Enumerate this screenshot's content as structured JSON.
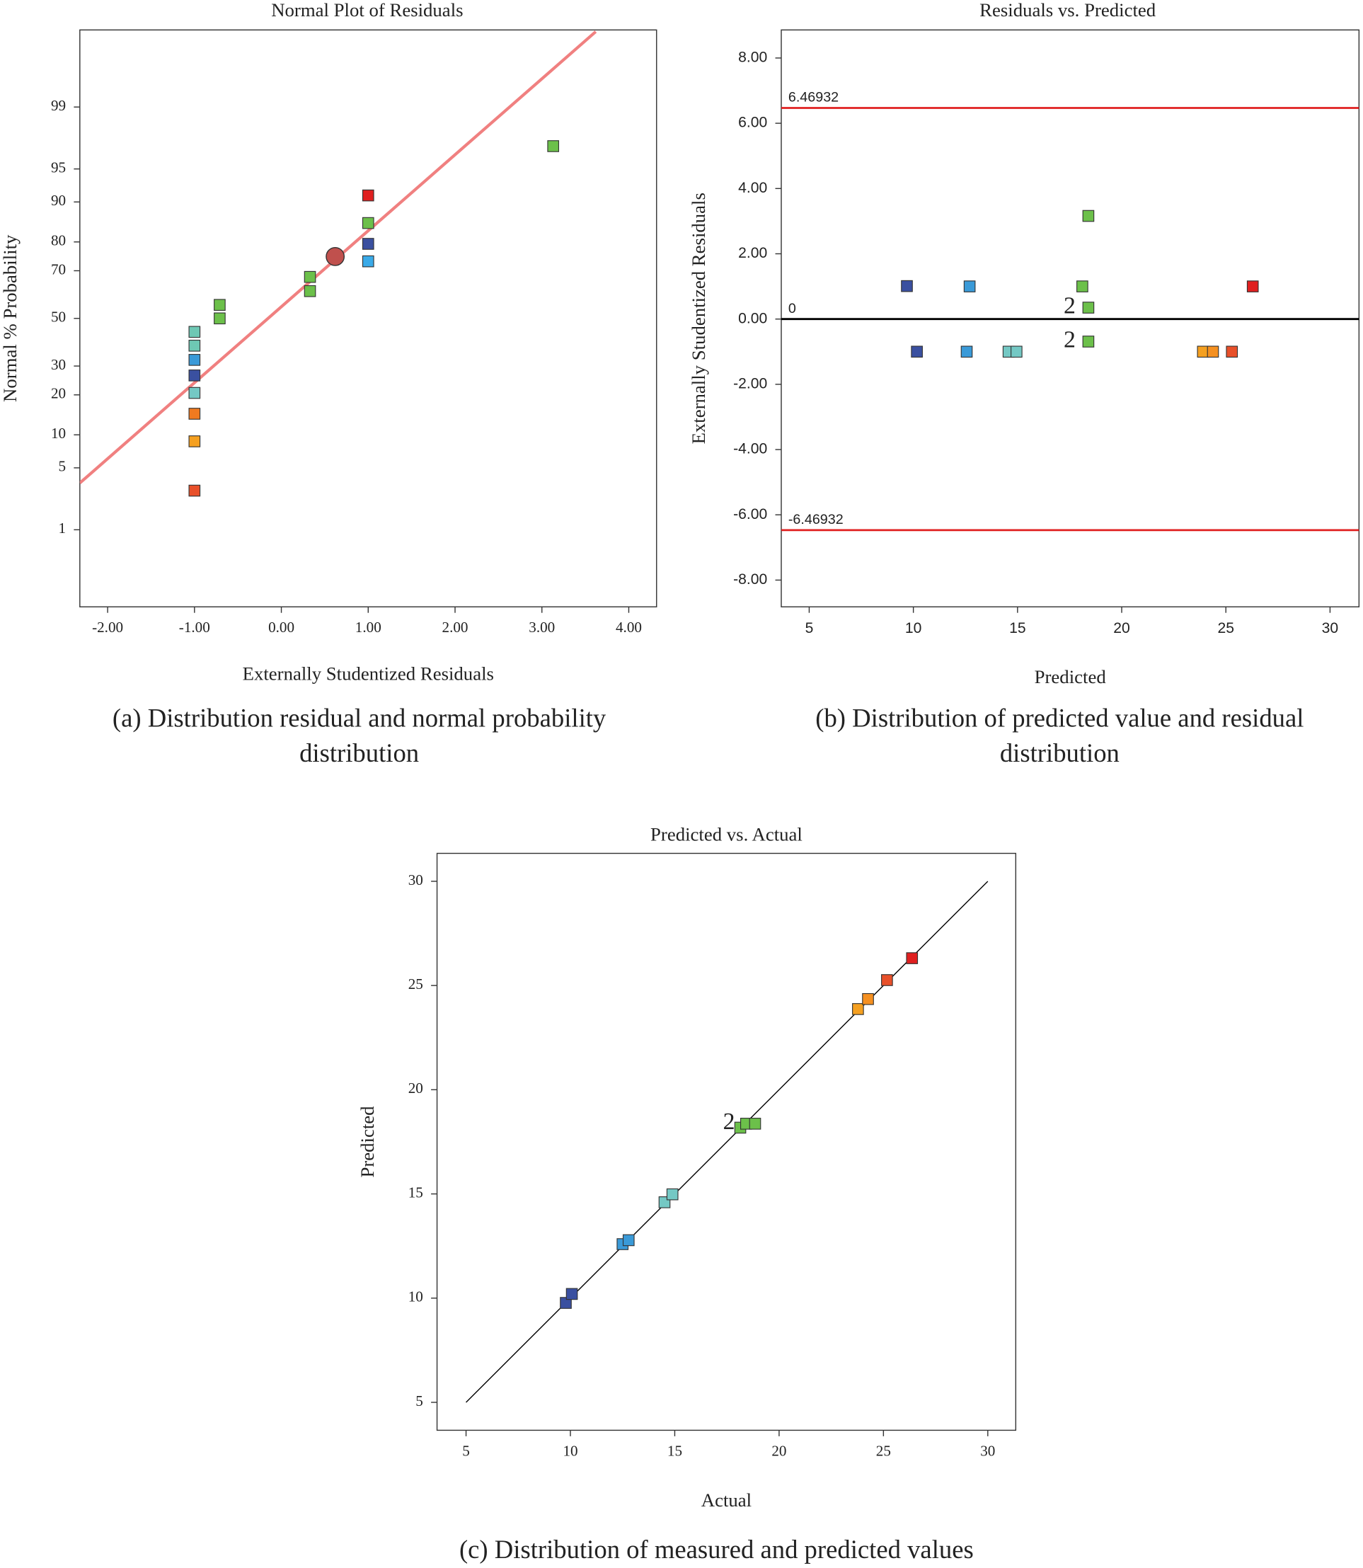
{
  "chart_data": [
    {
      "type": "scatter",
      "title": "Normal Plot of Residuals",
      "x_label": "Externally Studentized Residuals",
      "y_label": "Normal % Probability",
      "caption": "(a) Distribution residual and normal probability distribution",
      "xlim": [
        -2.32,
        4.32
      ],
      "xticks": [
        {
          "value": -2,
          "label": "-2.00"
        },
        {
          "value": -1,
          "label": "-1.00"
        },
        {
          "value": 0,
          "label": "0.00"
        },
        {
          "value": 1,
          "label": "1.00"
        },
        {
          "value": 2,
          "label": "2.00"
        },
        {
          "value": 3,
          "label": "3.00"
        },
        {
          "value": 4,
          "label": "4.00"
        }
      ],
      "yscale": "probit",
      "ylim": [
        0.075,
        99.925
      ],
      "yticks": [
        1,
        5,
        10,
        20,
        30,
        50,
        70,
        80,
        90,
        95,
        99
      ],
      "series": [
        {
          "x": [
            -1,
            -1,
            -1,
            -1,
            -1,
            -1,
            -1,
            -1,
            -0.71,
            -0.71,
            0.33,
            0.33,
            1,
            1,
            1,
            1,
            3.13
          ],
          "values": [
            2.9,
            8.8,
            14.7,
            20.6,
            26.5,
            32.4,
            38.2,
            44.1,
            50,
            55.9,
            61.8,
            67.6,
            73.5,
            79.4,
            85.3,
            91.2,
            97.1
          ],
          "colors": [
            "#e8502a",
            "#f5a020",
            "#f07a20",
            "#74c8c4",
            "#3a50a0",
            "#3a9ad8",
            "#6ec8b4",
            "#6ec8b4",
            "#6cc04a",
            "#6cc04a",
            "#6cc04a",
            "#6cc04a",
            "#3aaae8",
            "#3a50a0",
            "#6cc04a",
            "#e02020",
            "#6cc04a"
          ]
        }
      ],
      "fit_line": {
        "x": [
          -2.32,
          3.62
        ],
        "y": [
          3.5,
          99.92
        ],
        "color": "#f08080"
      },
      "center_point": {
        "x": 0.62,
        "y": 75.2,
        "color": "#c0504d"
      }
    },
    {
      "type": "scatter",
      "title": "Residuals vs. Predicted",
      "x_label": "Predicted",
      "y_label": "Externally Studentized Residuals",
      "caption": "(b) Distribution of predicted value and residual distribution",
      "xlim": [
        3.66,
        31.39
      ],
      "xticks": [
        5,
        10,
        15,
        20,
        25,
        30
      ],
      "ylim": [
        -8.82,
        8.86
      ],
      "yticks": [
        {
          "value": 8,
          "label": "8.00"
        },
        {
          "value": 6,
          "label": "6.00"
        },
        {
          "value": 4,
          "label": "4.00"
        },
        {
          "value": 2,
          "label": "2.00"
        },
        {
          "value": 0,
          "label": "0.00"
        },
        {
          "value": -2,
          "label": "-2.00"
        },
        {
          "value": -4,
          "label": "-4.00"
        },
        {
          "value": -6,
          "label": "-6.00"
        },
        {
          "value": -8,
          "label": "-8.00"
        }
      ],
      "series": [
        {
          "x": [
            9.69,
            10.17,
            12.7,
            12.56,
            14.57,
            14.95,
            18.11,
            18.4,
            18.4,
            18.4,
            23.9,
            24.38,
            25.29,
            26.29
          ],
          "values": [
            1.01,
            -1.0,
            1.0,
            -1.0,
            -1.0,
            -1.0,
            1.0,
            3.16,
            0.35,
            -0.69,
            -1.0,
            -1.0,
            -1.0,
            1.0
          ],
          "colors": [
            "#3a50a0",
            "#3a50a0",
            "#3a9ad8",
            "#3a9ad8",
            "#74c8c4",
            "#74c8c4",
            "#6cc04a",
            "#6cc04a",
            "#6cc04a",
            "#6cc04a",
            "#f5a020",
            "#f59020",
            "#e8502a",
            "#e02020"
          ]
        }
      ],
      "ref_lines": [
        {
          "value": 6.46932,
          "color": "#e02020"
        },
        {
          "value": 0,
          "color": "#000000"
        },
        {
          "value": -6.46932,
          "color": "#e02020"
        }
      ],
      "annotations": [
        {
          "text": "2",
          "x": 17.5,
          "y": 0.35
        },
        {
          "text": "2",
          "x": 17.5,
          "y": -0.69
        }
      ]
    },
    {
      "type": "scatter",
      "title": "Predicted vs. Actual",
      "x_label": "Actual",
      "y_label": "Predicted",
      "caption": "(c) Distribution of measured and predicted values",
      "xlim": [
        3.61,
        31.34
      ],
      "xticks": [
        5,
        10,
        15,
        20,
        25,
        30
      ],
      "ylim": [
        3.66,
        31.34
      ],
      "yticks": [
        5,
        10,
        15,
        20,
        25,
        30
      ],
      "series": [
        {
          "x": [
            9.78,
            10.07,
            12.5,
            12.79,
            14.51,
            14.89,
            18.14,
            18.42,
            18.85,
            23.78,
            24.26,
            25.17,
            26.37
          ],
          "values": [
            9.77,
            10.2,
            12.59,
            12.78,
            14.6,
            14.98,
            18.18,
            18.37,
            18.37,
            23.87,
            24.35,
            25.26,
            26.31
          ],
          "colors": [
            "#3a50a0",
            "#3a50a0",
            "#3a9ad8",
            "#3a9ad8",
            "#74c8c4",
            "#74c8c4",
            "#6cc04a",
            "#6cc04a",
            "#6cc04a",
            "#f5a020",
            "#f59020",
            "#e8502a",
            "#e02020"
          ]
        }
      ],
      "fit_line": {
        "x": [
          5,
          30
        ],
        "y": [
          5,
          30
        ],
        "color": "#000000"
      },
      "annotations": [
        {
          "text": "2",
          "x": 17.6,
          "y": 18.37
        }
      ]
    }
  ]
}
